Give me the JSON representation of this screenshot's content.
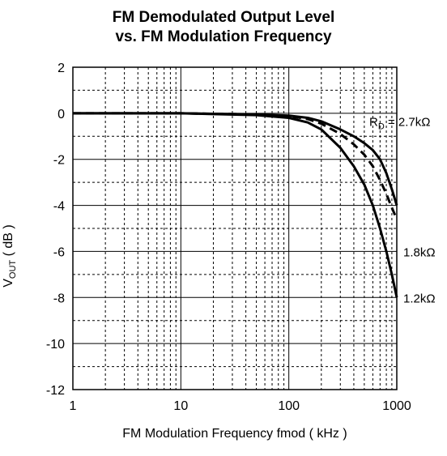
{
  "chart_data": {
    "type": "line",
    "title_line1": "FM Demodulated Output Level",
    "title_line2": "vs. FM Modulation Frequency",
    "xlabel": "FM Modulation Frequency fmod ( kHz )",
    "ylabel_main": "V",
    "ylabel_sub": "OUT",
    "ylabel_unit": " ( dB )",
    "x_scale": "log",
    "xlim": [
      1,
      1000
    ],
    "ylim": [
      -12,
      2
    ],
    "x_ticks": [
      "1",
      "10",
      "100",
      "1000"
    ],
    "x_tick_values": [
      1,
      10,
      100,
      1000
    ],
    "y_ticks": [
      "2",
      "0",
      "-2",
      "-4",
      "-6",
      "-8",
      "-10",
      "-12"
    ],
    "y_tick_values": [
      2,
      0,
      -2,
      -4,
      -6,
      -8,
      -10,
      -12
    ],
    "grid": true,
    "series": [
      {
        "name": "2.7kΩ",
        "label_prefix": "R",
        "label_sub": "D",
        "label_text": " = 2.7kΩ",
        "style": "solid",
        "x": [
          1,
          10,
          50,
          100,
          150,
          200,
          300,
          400,
          500,
          600,
          700,
          800,
          900,
          1000
        ],
        "y": [
          0,
          0,
          -0.05,
          -0.1,
          -0.2,
          -0.35,
          -0.7,
          -1.0,
          -1.3,
          -1.6,
          -2.0,
          -2.6,
          -3.3,
          -4.0
        ]
      },
      {
        "name": "1.8kΩ",
        "label_text": "1.8kΩ",
        "style": "dashed",
        "x": [
          1,
          10,
          50,
          100,
          150,
          200,
          300,
          400,
          500,
          600,
          700,
          800,
          900,
          1000
        ],
        "y": [
          0,
          0,
          -0.05,
          -0.12,
          -0.25,
          -0.45,
          -0.9,
          -1.35,
          -1.8,
          -2.3,
          -2.9,
          -3.5,
          -4.1,
          -4.6
        ]
      },
      {
        "name": "1.2kΩ",
        "label_text": "1.2kΩ",
        "style": "solid",
        "x": [
          1,
          10,
          50,
          100,
          150,
          200,
          300,
          400,
          500,
          600,
          700,
          800,
          900,
          1000
        ],
        "y": [
          0,
          0,
          -0.08,
          -0.2,
          -0.4,
          -0.7,
          -1.5,
          -2.3,
          -3.1,
          -4.0,
          -5.0,
          -6.0,
          -7.0,
          -8.0
        ]
      }
    ]
  }
}
